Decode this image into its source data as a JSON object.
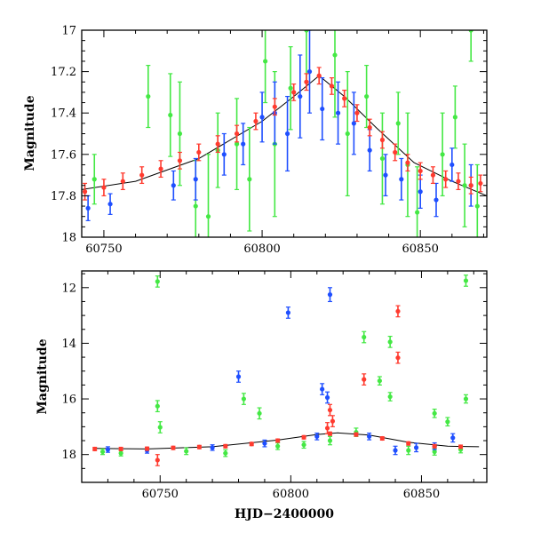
{
  "chart_data": [
    {
      "type": "scatter",
      "panel": "top",
      "title": "",
      "xlabel": "",
      "ylabel": "Magnitude",
      "xlim": [
        60743,
        60871
      ],
      "ylim": [
        18.0,
        17.0
      ],
      "y_inverted": true,
      "x_ticks": [
        60750,
        60800,
        60850
      ],
      "y_ticks": [
        17,
        17.2,
        17.4,
        17.6,
        17.8,
        18
      ],
      "y_tick_labels": [
        "17",
        "17.2",
        "17.4",
        "17.6",
        "17.8",
        "18"
      ],
      "colors": {
        "green": "#44e844",
        "blue": "#1f4fff",
        "red": "#ff3b2f",
        "model": "#000000"
      },
      "model_curve": {
        "x": [
          60743,
          60760,
          60780,
          60800,
          60810,
          60818,
          60826,
          60836,
          60848,
          60860,
          60871
        ],
        "y": [
          17.77,
          17.73,
          17.62,
          17.44,
          17.32,
          17.22,
          17.32,
          17.47,
          17.64,
          17.73,
          17.8
        ]
      },
      "series": [
        {
          "color": "green",
          "points": [
            [
              60747,
              17.72,
              0.12
            ],
            [
              60764,
              17.32,
              0.15
            ],
            [
              60771,
              17.41,
              0.2
            ],
            [
              60774,
              17.5,
              0.25
            ],
            [
              60779,
              17.85,
              0.22
            ],
            [
              60783,
              17.9,
              0.3
            ],
            [
              60786,
              17.58,
              0.18
            ],
            [
              60792,
              17.55,
              0.22
            ],
            [
              60796,
              17.72,
              0.25
            ],
            [
              60801,
              17.15,
              0.2
            ],
            [
              60804,
              17.55,
              0.35
            ],
            [
              60809,
              17.28,
              0.2
            ],
            [
              60814,
              17.0,
              0.25
            ],
            [
              60823,
              17.12,
              0.3
            ],
            [
              60827,
              17.5,
              0.3
            ],
            [
              60833,
              17.32,
              0.15
            ],
            [
              60838,
              17.62,
              0.22
            ],
            [
              60843,
              17.45,
              0.15
            ],
            [
              60846,
              17.65,
              0.25
            ],
            [
              60849,
              17.88,
              0.22
            ],
            [
              60857,
              17.6,
              0.2
            ],
            [
              60861,
              17.42,
              0.15
            ],
            [
              60864,
              17.75,
              0.2
            ],
            [
              60866,
              17.0,
              0.15
            ],
            [
              60868,
              17.85,
              0.2
            ]
          ]
        },
        {
          "color": "blue",
          "points": [
            [
              60745,
              17.86,
              0.06
            ],
            [
              60752,
              17.84,
              0.05
            ],
            [
              60772,
              17.75,
              0.07
            ],
            [
              60779,
              17.72,
              0.1
            ],
            [
              60788,
              17.6,
              0.1
            ],
            [
              60794,
              17.55,
              0.1
            ],
            [
              60800,
              17.42,
              0.12
            ],
            [
              60804,
              17.4,
              0.15
            ],
            [
              60808,
              17.5,
              0.18
            ],
            [
              60812,
              17.32,
              0.2
            ],
            [
              60815,
              17.2,
              0.2
            ],
            [
              60819,
              17.38,
              0.15
            ],
            [
              60824,
              17.4,
              0.15
            ],
            [
              60829,
              17.45,
              0.15
            ],
            [
              60834,
              17.58,
              0.1
            ],
            [
              60839,
              17.7,
              0.1
            ],
            [
              60844,
              17.72,
              0.1
            ],
            [
              60850,
              17.78,
              0.08
            ],
            [
              60855,
              17.82,
              0.08
            ],
            [
              60860,
              17.65,
              0.08
            ],
            [
              60866,
              17.75,
              0.1
            ]
          ]
        },
        {
          "color": "red",
          "points": [
            [
              60744,
              17.78,
              0.04
            ],
            [
              60750,
              17.76,
              0.04
            ],
            [
              60756,
              17.73,
              0.04
            ],
            [
              60762,
              17.7,
              0.04
            ],
            [
              60768,
              17.67,
              0.04
            ],
            [
              60774,
              17.63,
              0.04
            ],
            [
              60780,
              17.59,
              0.04
            ],
            [
              60786,
              17.55,
              0.04
            ],
            [
              60792,
              17.5,
              0.04
            ],
            [
              60798,
              17.44,
              0.04
            ],
            [
              60804,
              17.37,
              0.04
            ],
            [
              60810,
              17.3,
              0.04
            ],
            [
              60814,
              17.25,
              0.04
            ],
            [
              60818,
              17.22,
              0.04
            ],
            [
              60822,
              17.27,
              0.04
            ],
            [
              60826,
              17.33,
              0.04
            ],
            [
              60830,
              17.4,
              0.04
            ],
            [
              60834,
              17.47,
              0.04
            ],
            [
              60838,
              17.53,
              0.04
            ],
            [
              60842,
              17.59,
              0.04
            ],
            [
              60846,
              17.64,
              0.04
            ],
            [
              60850,
              17.68,
              0.04
            ],
            [
              60854,
              17.7,
              0.04
            ],
            [
              60858,
              17.72,
              0.04
            ],
            [
              60862,
              17.73,
              0.04
            ],
            [
              60866,
              17.75,
              0.04
            ],
            [
              60869,
              17.74,
              0.04
            ]
          ]
        }
      ]
    },
    {
      "type": "scatter",
      "panel": "bottom",
      "title": "",
      "xlabel": "HJD−2400000",
      "ylabel": "Magnitude",
      "xlim": [
        60720,
        60875
      ],
      "ylim": [
        19.0,
        11.4
      ],
      "y_inverted": true,
      "x_ticks": [
        60750,
        60800,
        60850
      ],
      "y_ticks": [
        12,
        14,
        16,
        18
      ],
      "y_tick_labels": [
        "12",
        "14",
        "16",
        "18"
      ],
      "colors": {
        "green": "#44e844",
        "blue": "#1f4fff",
        "red": "#ff3b2f",
        "model": "#000000"
      },
      "model_curve": {
        "x": [
          60725,
          60745,
          60770,
          60795,
          60810,
          60818,
          60830,
          60845,
          60860,
          60872
        ],
        "y": [
          17.78,
          17.8,
          17.72,
          17.48,
          17.28,
          17.22,
          17.3,
          17.56,
          17.7,
          17.72
        ]
      },
      "series": [
        {
          "color": "green",
          "points": [
            [
              60749,
              11.78,
              0.2
            ],
            [
              60749,
              16.26,
              0.2
            ],
            [
              60750,
              17.02,
              0.2
            ],
            [
              60782,
              16.0,
              0.2
            ],
            [
              60788,
              16.52,
              0.2
            ],
            [
              60828,
              13.78,
              0.2
            ],
            [
              60834,
              15.35,
              0.15
            ],
            [
              60838,
              15.92,
              0.15
            ],
            [
              60838,
              13.95,
              0.2
            ],
            [
              60855,
              16.52,
              0.15
            ],
            [
              60860,
              16.82,
              0.15
            ],
            [
              60867,
              11.75,
              0.2
            ],
            [
              60867,
              16.0,
              0.15
            ],
            [
              60728,
              17.9,
              0.1
            ],
            [
              60735,
              17.95,
              0.1
            ],
            [
              60760,
              17.88,
              0.12
            ],
            [
              60775,
              17.95,
              0.12
            ],
            [
              60795,
              17.7,
              0.12
            ],
            [
              60805,
              17.65,
              0.12
            ],
            [
              60815,
              17.5,
              0.15
            ],
            [
              60825,
              17.2,
              0.15
            ],
            [
              60845,
              17.85,
              0.15
            ],
            [
              60855,
              17.9,
              0.12
            ],
            [
              60865,
              17.82,
              0.12
            ]
          ]
        },
        {
          "color": "blue",
          "points": [
            [
              60799,
              12.9,
              0.2
            ],
            [
              60815,
              12.25,
              0.25
            ],
            [
              60780,
              15.2,
              0.2
            ],
            [
              60812,
              15.65,
              0.2
            ],
            [
              60814,
              15.95,
              0.2
            ],
            [
              60840,
              17.85,
              0.15
            ],
            [
              60848,
              17.75,
              0.15
            ],
            [
              60862,
              17.4,
              0.15
            ],
            [
              60730,
              17.82,
              0.1
            ],
            [
              60745,
              17.85,
              0.1
            ],
            [
              60770,
              17.75,
              0.1
            ],
            [
              60790,
              17.6,
              0.12
            ],
            [
              60810,
              17.35,
              0.12
            ],
            [
              60830,
              17.35,
              0.12
            ],
            [
              60855,
              17.7,
              0.12
            ]
          ]
        },
        {
          "color": "red",
          "points": [
            [
              60841,
              12.85,
              0.2
            ],
            [
              60841,
              14.52,
              0.2
            ],
            [
              60828,
              15.3,
              0.2
            ],
            [
              60749,
              18.2,
              0.2
            ],
            [
              60815,
              16.4,
              0.2
            ],
            [
              60816,
              16.8,
              0.2
            ],
            [
              60814,
              17.05,
              0.2
            ],
            [
              60725,
              17.8,
              0.06
            ],
            [
              60735,
              17.8,
              0.06
            ],
            [
              60745,
              17.79,
              0.06
            ],
            [
              60755,
              17.76,
              0.06
            ],
            [
              60765,
              17.73,
              0.06
            ],
            [
              60775,
              17.7,
              0.06
            ],
            [
              60785,
              17.62,
              0.06
            ],
            [
              60795,
              17.5,
              0.06
            ],
            [
              60805,
              17.38,
              0.06
            ],
            [
              60815,
              17.25,
              0.06
            ],
            [
              60825,
              17.28,
              0.06
            ],
            [
              60835,
              17.42,
              0.06
            ],
            [
              60845,
              17.6,
              0.06
            ],
            [
              60855,
              17.7,
              0.06
            ],
            [
              60865,
              17.72,
              0.06
            ]
          ]
        }
      ]
    }
  ]
}
